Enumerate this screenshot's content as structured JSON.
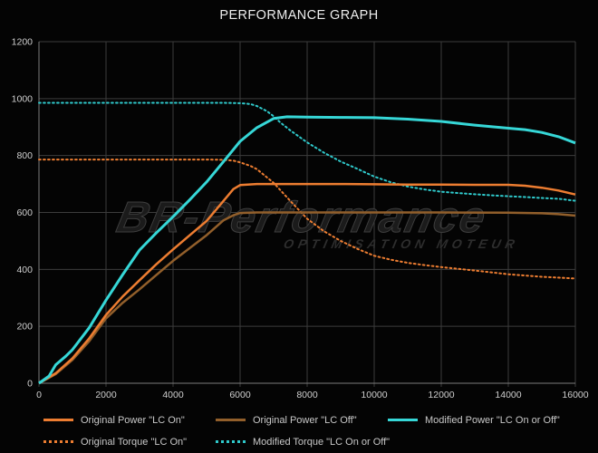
{
  "chart_data": {
    "type": "line",
    "title": "PERFORMANCE GRAPH",
    "xlabel": "",
    "ylabel": "",
    "grid": true,
    "legend_position": "bottom",
    "axes": {
      "x": {
        "min": 0,
        "max": 16000,
        "tick_step": 2000,
        "ticks": [
          0,
          2000,
          4000,
          6000,
          8000,
          10000,
          12000,
          14000,
          16000
        ]
      },
      "y": {
        "min": 0,
        "max": 1200,
        "tick_step": 200,
        "ticks": [
          0,
          200,
          400,
          600,
          800,
          1000,
          1200
        ]
      }
    },
    "series": [
      {
        "name": "Original Torque \"LC On\"",
        "color": "#ed7d31",
        "line_style": "dotted",
        "points": [
          [
            0,
            786
          ],
          [
            1000,
            786
          ],
          [
            2000,
            786
          ],
          [
            3000,
            786
          ],
          [
            4000,
            786
          ],
          [
            5000,
            786
          ],
          [
            5500,
            785
          ],
          [
            5800,
            782
          ],
          [
            6000,
            776
          ],
          [
            6300,
            764
          ],
          [
            6500,
            752
          ],
          [
            7000,
            704
          ],
          [
            7500,
            640
          ],
          [
            8000,
            578
          ],
          [
            8500,
            534
          ],
          [
            9000,
            500
          ],
          [
            9500,
            472
          ],
          [
            10000,
            448
          ],
          [
            10500,
            434
          ],
          [
            11000,
            423
          ],
          [
            11500,
            415
          ],
          [
            12000,
            408
          ],
          [
            13000,
            396
          ],
          [
            14000,
            383
          ],
          [
            15000,
            374
          ],
          [
            16000,
            368
          ]
        ]
      },
      {
        "name": "Modified Torque \"LC On or Off\"",
        "color": "#2fc9cb",
        "line_style": "dotted",
        "points": [
          [
            0,
            985
          ],
          [
            1000,
            985
          ],
          [
            2000,
            985
          ],
          [
            3000,
            985
          ],
          [
            4000,
            985
          ],
          [
            5000,
            985
          ],
          [
            5500,
            985
          ],
          [
            6000,
            984
          ],
          [
            6300,
            981
          ],
          [
            6500,
            974
          ],
          [
            6800,
            956
          ],
          [
            7000,
            938
          ],
          [
            7200,
            916
          ],
          [
            7500,
            888
          ],
          [
            8000,
            846
          ],
          [
            8500,
            810
          ],
          [
            9000,
            779
          ],
          [
            9500,
            753
          ],
          [
            10000,
            726
          ],
          [
            10500,
            706
          ],
          [
            11000,
            691
          ],
          [
            11500,
            681
          ],
          [
            12000,
            673
          ],
          [
            12500,
            668
          ],
          [
            13000,
            664
          ],
          [
            13500,
            660
          ],
          [
            14000,
            657
          ],
          [
            14500,
            654
          ],
          [
            15000,
            651
          ],
          [
            15500,
            648
          ],
          [
            16000,
            641
          ]
        ]
      },
      {
        "name": "Original Power \"LC Off\"",
        "color": "#925f2b",
        "line_style": "solid",
        "points": [
          [
            0,
            0
          ],
          [
            500,
            32
          ],
          [
            1000,
            82
          ],
          [
            1500,
            148
          ],
          [
            2000,
            228
          ],
          [
            2500,
            283
          ],
          [
            3000,
            330
          ],
          [
            3500,
            380
          ],
          [
            4000,
            430
          ],
          [
            4500,
            475
          ],
          [
            5000,
            520
          ],
          [
            5500,
            572
          ],
          [
            5800,
            590
          ],
          [
            6000,
            598
          ],
          [
            6500,
            600
          ],
          [
            7000,
            600
          ],
          [
            8000,
            600
          ],
          [
            10000,
            600
          ],
          [
            12000,
            600
          ],
          [
            14000,
            599
          ],
          [
            15000,
            597
          ],
          [
            15500,
            594
          ],
          [
            16000,
            589
          ]
        ]
      },
      {
        "name": "Original Power \"LC On\"",
        "color": "#ed7d31",
        "line_style": "solid",
        "points": [
          [
            0,
            0
          ],
          [
            500,
            35
          ],
          [
            1000,
            88
          ],
          [
            1500,
            158
          ],
          [
            2000,
            240
          ],
          [
            2500,
            305
          ],
          [
            3000,
            362
          ],
          [
            3500,
            418
          ],
          [
            4000,
            470
          ],
          [
            4500,
            520
          ],
          [
            5000,
            570
          ],
          [
            5500,
            640
          ],
          [
            5800,
            682
          ],
          [
            6000,
            696
          ],
          [
            6500,
            700
          ],
          [
            7000,
            700
          ],
          [
            8000,
            700
          ],
          [
            9000,
            700
          ],
          [
            10000,
            699
          ],
          [
            11000,
            698
          ],
          [
            12000,
            698
          ],
          [
            13000,
            697
          ],
          [
            14000,
            697
          ],
          [
            14500,
            694
          ],
          [
            15000,
            687
          ],
          [
            15500,
            677
          ],
          [
            16000,
            663
          ]
        ]
      },
      {
        "name": "Modified Power \"LC On or Off\"",
        "color": "#36d7d7",
        "line_style": "solid",
        "points": [
          [
            0,
            0
          ],
          [
            300,
            25
          ],
          [
            500,
            65
          ],
          [
            800,
            95
          ],
          [
            1000,
            118
          ],
          [
            1500,
            195
          ],
          [
            2000,
            292
          ],
          [
            2500,
            382
          ],
          [
            3000,
            468
          ],
          [
            3500,
            528
          ],
          [
            4000,
            585
          ],
          [
            4500,
            645
          ],
          [
            5000,
            707
          ],
          [
            5500,
            778
          ],
          [
            6000,
            850
          ],
          [
            6500,
            898
          ],
          [
            7000,
            930
          ],
          [
            7400,
            936
          ],
          [
            8000,
            935
          ],
          [
            9000,
            934
          ],
          [
            10000,
            933
          ],
          [
            11000,
            928
          ],
          [
            12000,
            920
          ],
          [
            13000,
            907
          ],
          [
            14000,
            896
          ],
          [
            14500,
            891
          ],
          [
            15000,
            881
          ],
          [
            15500,
            866
          ],
          [
            16000,
            844
          ]
        ]
      }
    ],
    "legend": [
      {
        "label": "Original Power \"LC On\"",
        "color": "#ed7d31",
        "line_style": "solid"
      },
      {
        "label": "Original Power \"LC Off\"",
        "color": "#925f2b",
        "line_style": "solid"
      },
      {
        "label": "Modified Power \"LC On or Off\"",
        "color": "#36d7d7",
        "line_style": "solid"
      },
      {
        "label": "Original Torque \"LC On\"",
        "color": "#ed7d31",
        "line_style": "dotted"
      },
      {
        "label": "Modified Torque \"LC On or Off\"",
        "color": "#2fc9cb",
        "line_style": "dotted"
      }
    ]
  },
  "watermark": {
    "main": "BR-Performance",
    "sub": "OPTIMISATION MOTEUR"
  },
  "colors": {
    "background": "#040404",
    "grid": "#3c3c3c",
    "axis": "#7d7d7d",
    "tick_label": "#cfcfcf",
    "title": "#ededed"
  }
}
